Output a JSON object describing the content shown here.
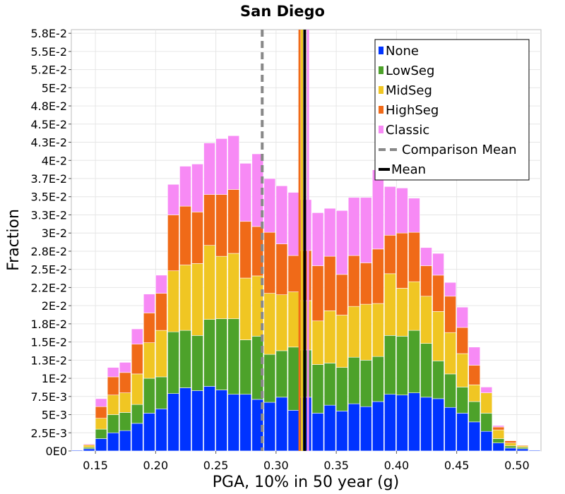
{
  "chart_data": {
    "type": "bar",
    "stacked": true,
    "title": "San Diego",
    "xlabel": "PGA, 10% in 50 year (g)",
    "ylabel": "Fraction",
    "xlim": [
      0.13,
      0.52
    ],
    "ylim": [
      0,
      0.058
    ],
    "bin_width": 0.01,
    "x_ticks": [
      {
        "v": 0.15,
        "label": "0.15"
      },
      {
        "v": 0.2,
        "label": "0.20"
      },
      {
        "v": 0.25,
        "label": "0.25"
      },
      {
        "v": 0.3,
        "label": "0.30"
      },
      {
        "v": 0.35,
        "label": "0.35"
      },
      {
        "v": 0.4,
        "label": "0.40"
      },
      {
        "v": 0.45,
        "label": "0.45"
      },
      {
        "v": 0.5,
        "label": "0.50"
      }
    ],
    "y_ticks": [
      {
        "v": 0,
        "label": "0E0"
      },
      {
        "v": 0.0025,
        "label": "2.5E-3"
      },
      {
        "v": 0.005,
        "label": "5E-3"
      },
      {
        "v": 0.0075,
        "label": "7.5E-3"
      },
      {
        "v": 0.01,
        "label": "1E-2"
      },
      {
        "v": 0.0125,
        "label": "1.3E-2"
      },
      {
        "v": 0.015,
        "label": "1.5E-2"
      },
      {
        "v": 0.0175,
        "label": "1.8E-2"
      },
      {
        "v": 0.02,
        "label": "2E-2"
      },
      {
        "v": 0.0225,
        "label": "2.2E-2"
      },
      {
        "v": 0.025,
        "label": "2.5E-2"
      },
      {
        "v": 0.0275,
        "label": "2.8E-2"
      },
      {
        "v": 0.03,
        "label": "3E-2"
      },
      {
        "v": 0.0325,
        "label": "3.3E-2"
      },
      {
        "v": 0.035,
        "label": "3.5E-2"
      },
      {
        "v": 0.0375,
        "label": "3.7E-2"
      },
      {
        "v": 0.04,
        "label": "4E-2"
      },
      {
        "v": 0.0425,
        "label": "4.3E-2"
      },
      {
        "v": 0.045,
        "label": "4.5E-2"
      },
      {
        "v": 0.0475,
        "label": "4.8E-2"
      },
      {
        "v": 0.05,
        "label": "5E-2"
      },
      {
        "v": 0.0525,
        "label": "5.2E-2"
      },
      {
        "v": 0.055,
        "label": "5.5E-2"
      },
      {
        "v": 0.0575,
        "label": "5.8E-2"
      }
    ],
    "bin_centers": [
      0.135,
      0.145,
      0.155,
      0.165,
      0.175,
      0.185,
      0.195,
      0.205,
      0.215,
      0.225,
      0.235,
      0.245,
      0.255,
      0.265,
      0.275,
      0.285,
      0.295,
      0.305,
      0.315,
      0.325,
      0.335,
      0.345,
      0.355,
      0.365,
      0.375,
      0.385,
      0.395,
      0.405,
      0.415,
      0.425,
      0.435,
      0.445,
      0.455,
      0.465,
      0.475,
      0.485,
      0.495,
      0.505,
      0.515
    ],
    "series": [
      {
        "name": "None",
        "color": "#0033ff",
        "values": [
          0.0001,
          0.0003,
          0.0017,
          0.0025,
          0.0028,
          0.0038,
          0.0052,
          0.0058,
          0.0079,
          0.0087,
          0.0083,
          0.0089,
          0.0084,
          0.0078,
          0.0078,
          0.0071,
          0.0067,
          0.0074,
          0.0056,
          0.0074,
          0.0052,
          0.0063,
          0.0055,
          0.0065,
          0.0061,
          0.0068,
          0.0078,
          0.0077,
          0.008,
          0.0074,
          0.0072,
          0.006,
          0.0052,
          0.004,
          0.0027,
          0.0011,
          0.0004,
          0.0003,
          0.0001
        ]
      },
      {
        "name": "LowSeg",
        "color": "#4da22a",
        "values": [
          0.0,
          0.0002,
          0.0013,
          0.0025,
          0.0025,
          0.0026,
          0.0048,
          0.0044,
          0.0085,
          0.0079,
          0.0076,
          0.0092,
          0.0098,
          0.0104,
          0.0075,
          0.0087,
          0.0066,
          0.0064,
          0.0087,
          0.0065,
          0.0067,
          0.0058,
          0.006,
          0.0064,
          0.0064,
          0.0062,
          0.0081,
          0.0081,
          0.0086,
          0.0074,
          0.0052,
          0.0046,
          0.0036,
          0.0028,
          0.0025,
          0.0006,
          0.0003,
          0.0002,
          0.0
        ]
      },
      {
        "name": "MidSeg",
        "color": "#f0c623",
        "values": [
          0.0,
          0.0003,
          0.0015,
          0.0027,
          0.0027,
          0.0042,
          0.0049,
          0.0064,
          0.0084,
          0.009,
          0.0099,
          0.0102,
          0.0086,
          0.009,
          0.0085,
          0.0083,
          0.0084,
          0.0077,
          0.0076,
          0.0068,
          0.006,
          0.0072,
          0.0072,
          0.007,
          0.0077,
          0.0073,
          0.0085,
          0.0066,
          0.0067,
          0.0065,
          0.0068,
          0.0057,
          0.0046,
          0.0023,
          0.0028,
          0.0012,
          0.0004,
          0.0002,
          0.0
        ]
      },
      {
        "name": "HighSeg",
        "color": "#f06a18",
        "values": [
          0.0,
          0.0001,
          0.0016,
          0.0025,
          0.0028,
          0.0041,
          0.0041,
          0.0051,
          0.0077,
          0.0081,
          0.0071,
          0.007,
          0.0085,
          0.0088,
          0.0078,
          0.0068,
          0.0084,
          0.007,
          0.005,
          0.0069,
          0.0076,
          0.0075,
          0.0056,
          0.007,
          0.0057,
          0.0075,
          0.0053,
          0.0076,
          0.0068,
          0.0042,
          0.005,
          0.005,
          0.0036,
          0.0027,
          0.0,
          0.0004,
          0.0003,
          0.0001,
          0.0
        ]
      },
      {
        "name": "Classic",
        "color": "#f78af5",
        "values": [
          0.0,
          0.0001,
          0.0011,
          0.0013,
          0.0014,
          0.0021,
          0.0026,
          0.0025,
          0.0042,
          0.0055,
          0.0066,
          0.0071,
          0.0077,
          0.0074,
          0.008,
          0.01,
          0.0074,
          0.008,
          0.0087,
          0.007,
          0.0073,
          0.0066,
          0.0088,
          0.008,
          0.009,
          0.0109,
          0.0067,
          0.0062,
          0.0047,
          0.0025,
          0.003,
          0.0019,
          0.0028,
          0.0025,
          0.0008,
          0.0002,
          0.0,
          0.0,
          0.0
        ]
      }
    ],
    "mean_lines": [
      {
        "name": "Comparison Mean",
        "x": 0.2885,
        "color": "#888888",
        "dashed": true
      },
      {
        "name": "Mean (HighSeg)",
        "x": 0.3195,
        "color": "#f06a18",
        "dashed": false
      },
      {
        "name": "Mean (MidSeg)",
        "x": 0.3215,
        "color": "#f0c623",
        "dashed": false
      },
      {
        "name": "Mean",
        "x": 0.3238,
        "color": "#000000",
        "dashed": false
      },
      {
        "name": "Mean (Classic)",
        "x": 0.3265,
        "color": "#f78af5",
        "dashed": false
      }
    ],
    "legend": {
      "placement": "top-right",
      "entries": [
        {
          "label": "None",
          "color": "#0033ff",
          "kind": "box"
        },
        {
          "label": "LowSeg",
          "color": "#4da22a",
          "kind": "box"
        },
        {
          "label": "MidSeg",
          "color": "#f0c623",
          "kind": "box"
        },
        {
          "label": "HighSeg",
          "color": "#f06a18",
          "kind": "box"
        },
        {
          "label": "Classic",
          "color": "#f78af5",
          "kind": "box"
        },
        {
          "label": "Comparison Mean",
          "color": "#888888",
          "kind": "dash"
        },
        {
          "label": "Mean",
          "color": "#000000",
          "kind": "line"
        }
      ]
    }
  }
}
